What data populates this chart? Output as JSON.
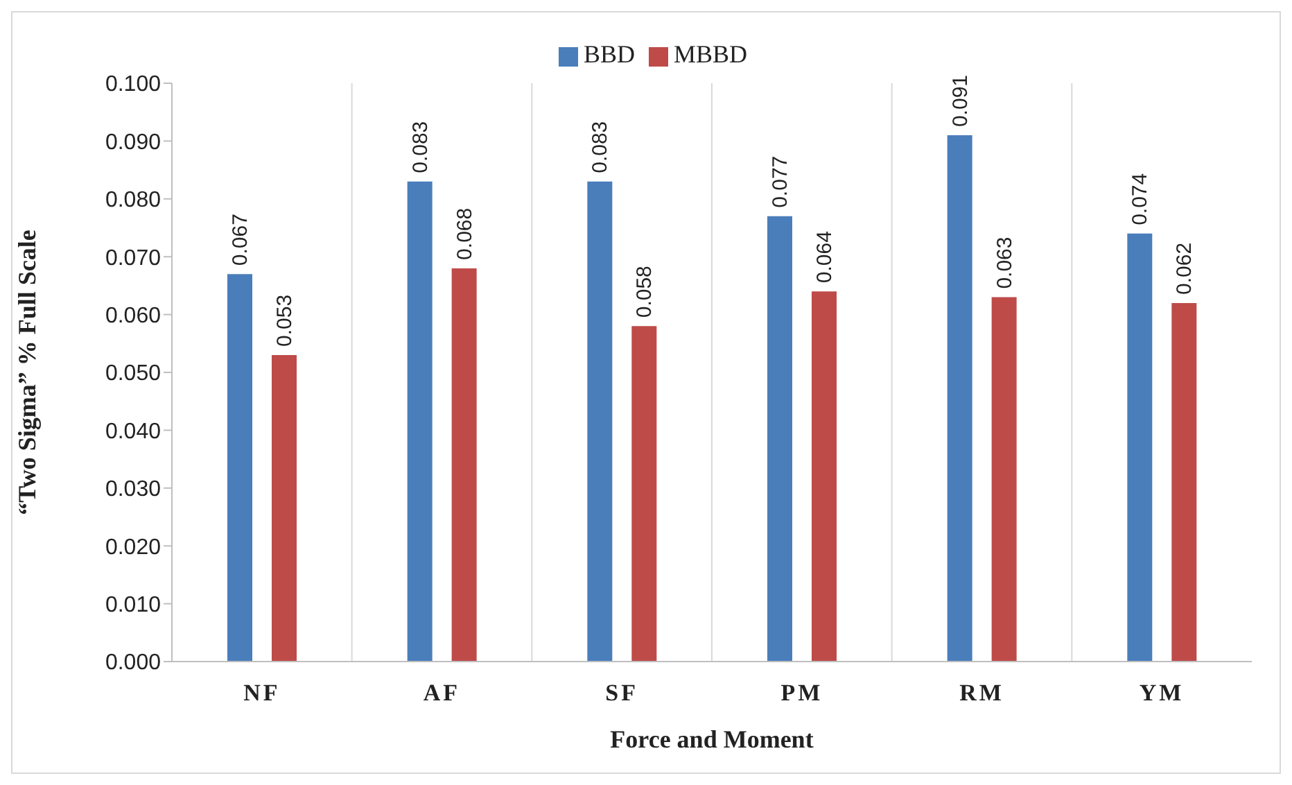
{
  "chart_data": {
    "type": "bar",
    "categories": [
      "NF",
      "AF",
      "SF",
      "PM",
      "RM",
      "YM"
    ],
    "series": [
      {
        "name": "BBD",
        "color": "#4a7ebb",
        "values": [
          0.067,
          0.083,
          0.083,
          0.077,
          0.091,
          0.074
        ]
      },
      {
        "name": "MBBD",
        "color": "#be4b48",
        "values": [
          0.053,
          0.068,
          0.058,
          0.064,
          0.063,
          0.062
        ]
      }
    ],
    "xlabel": "Force and Moment",
    "ylabel": "“Two Sigma” % Full Scale",
    "ylim": [
      0,
      0.1
    ],
    "yticks": [
      {
        "value": 0,
        "label": "0.000"
      },
      {
        "value": 0.01,
        "label": "0.010"
      },
      {
        "value": 0.02,
        "label": "0.020"
      },
      {
        "value": 0.03,
        "label": "0.030"
      },
      {
        "value": 0.04,
        "label": "0.040"
      },
      {
        "value": 0.05,
        "label": "0.050"
      },
      {
        "value": 0.06,
        "label": "0.060"
      },
      {
        "value": 0.07,
        "label": "0.070"
      },
      {
        "value": 0.08,
        "label": "0.080"
      },
      {
        "value": 0.09,
        "label": "0.090"
      },
      {
        "value": 0.1,
        "label": "0.100"
      }
    ],
    "grid": "x",
    "legend": "top",
    "data_labels": true
  }
}
